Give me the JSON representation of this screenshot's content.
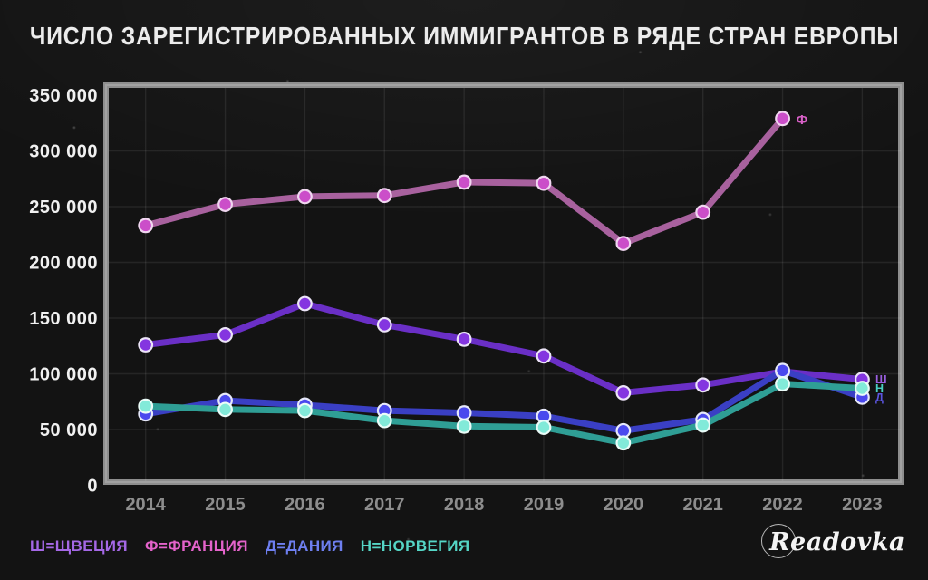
{
  "title": "ЧИСЛО ЗАРЕГИСТРИРОВАННЫХ ИММИГРАНТОВ В РЯДЕ СТРАН ЕВРОПЫ",
  "logo": "Readovka",
  "legend": [
    {
      "label": "Ш=ЩВЕЦИЯ",
      "color": "#a568e6"
    },
    {
      "label": "Ф=ФРАНЦИЯ",
      "color": "#e463cb"
    },
    {
      "label": "Д=ДАНИЯ",
      "color": "#6e7ff0"
    },
    {
      "label": "Н=НОРВЕГИЯ",
      "color": "#55d6c6"
    }
  ],
  "chart_data": {
    "type": "line",
    "title": "ЧИСЛО ЗАРЕГИСТРИРОВАННЫХ ИММИГРАНТОВ В РЯДЕ СТРАН ЕВРОПЫ",
    "x": [
      "2014",
      "2015",
      "2016",
      "2017",
      "2018",
      "2019",
      "2020",
      "2021",
      "2022",
      "2023"
    ],
    "ylim": [
      0,
      350000
    ],
    "ytick_step": 50000,
    "ytick_labels": [
      "0",
      "50 000",
      "100 000",
      "150 000",
      "200 000",
      "250 000",
      "300 000",
      "350 000"
    ],
    "grid": true,
    "legend_position": "bottom-left",
    "series": [
      {
        "key": "sweden",
        "name": "Швеция",
        "letter": "Ш",
        "line_color": "#6a2fc6",
        "dot_color": "#8435e0",
        "ring_color": "#ece4f8",
        "label_color": "#9a5fe0",
        "values": [
          126000,
          135000,
          163000,
          144000,
          131000,
          116000,
          83000,
          90000,
          102000,
          95000
        ]
      },
      {
        "key": "denmark",
        "name": "Дания",
        "letter": "Д",
        "line_color": "#3a3fc4",
        "dot_color": "#4a49ee",
        "ring_color": "#e6e8fa",
        "label_color": "#5b55e0",
        "values": [
          64000,
          76000,
          72000,
          67000,
          65000,
          62000,
          49000,
          59000,
          103000,
          79000
        ]
      },
      {
        "key": "norway",
        "name": "Норвегия",
        "letter": "Н",
        "line_color": "#2f9e95",
        "dot_color": "#82ead9",
        "ring_color": "#eafcf8",
        "label_color": "#49cfc1",
        "values": [
          71000,
          68000,
          67000,
          58000,
          53000,
          52000,
          38000,
          54000,
          91000,
          87000
        ]
      },
      {
        "key": "france",
        "name": "Франция",
        "letter": "Ф",
        "line_color": "#a8619e",
        "dot_color": "#cb4ec9",
        "ring_color": "#f0d6f0",
        "label_color": "#d760c6",
        "values": [
          233000,
          252000,
          259000,
          260000,
          272000,
          271000,
          217000,
          245000,
          329000,
          null
        ]
      }
    ]
  }
}
